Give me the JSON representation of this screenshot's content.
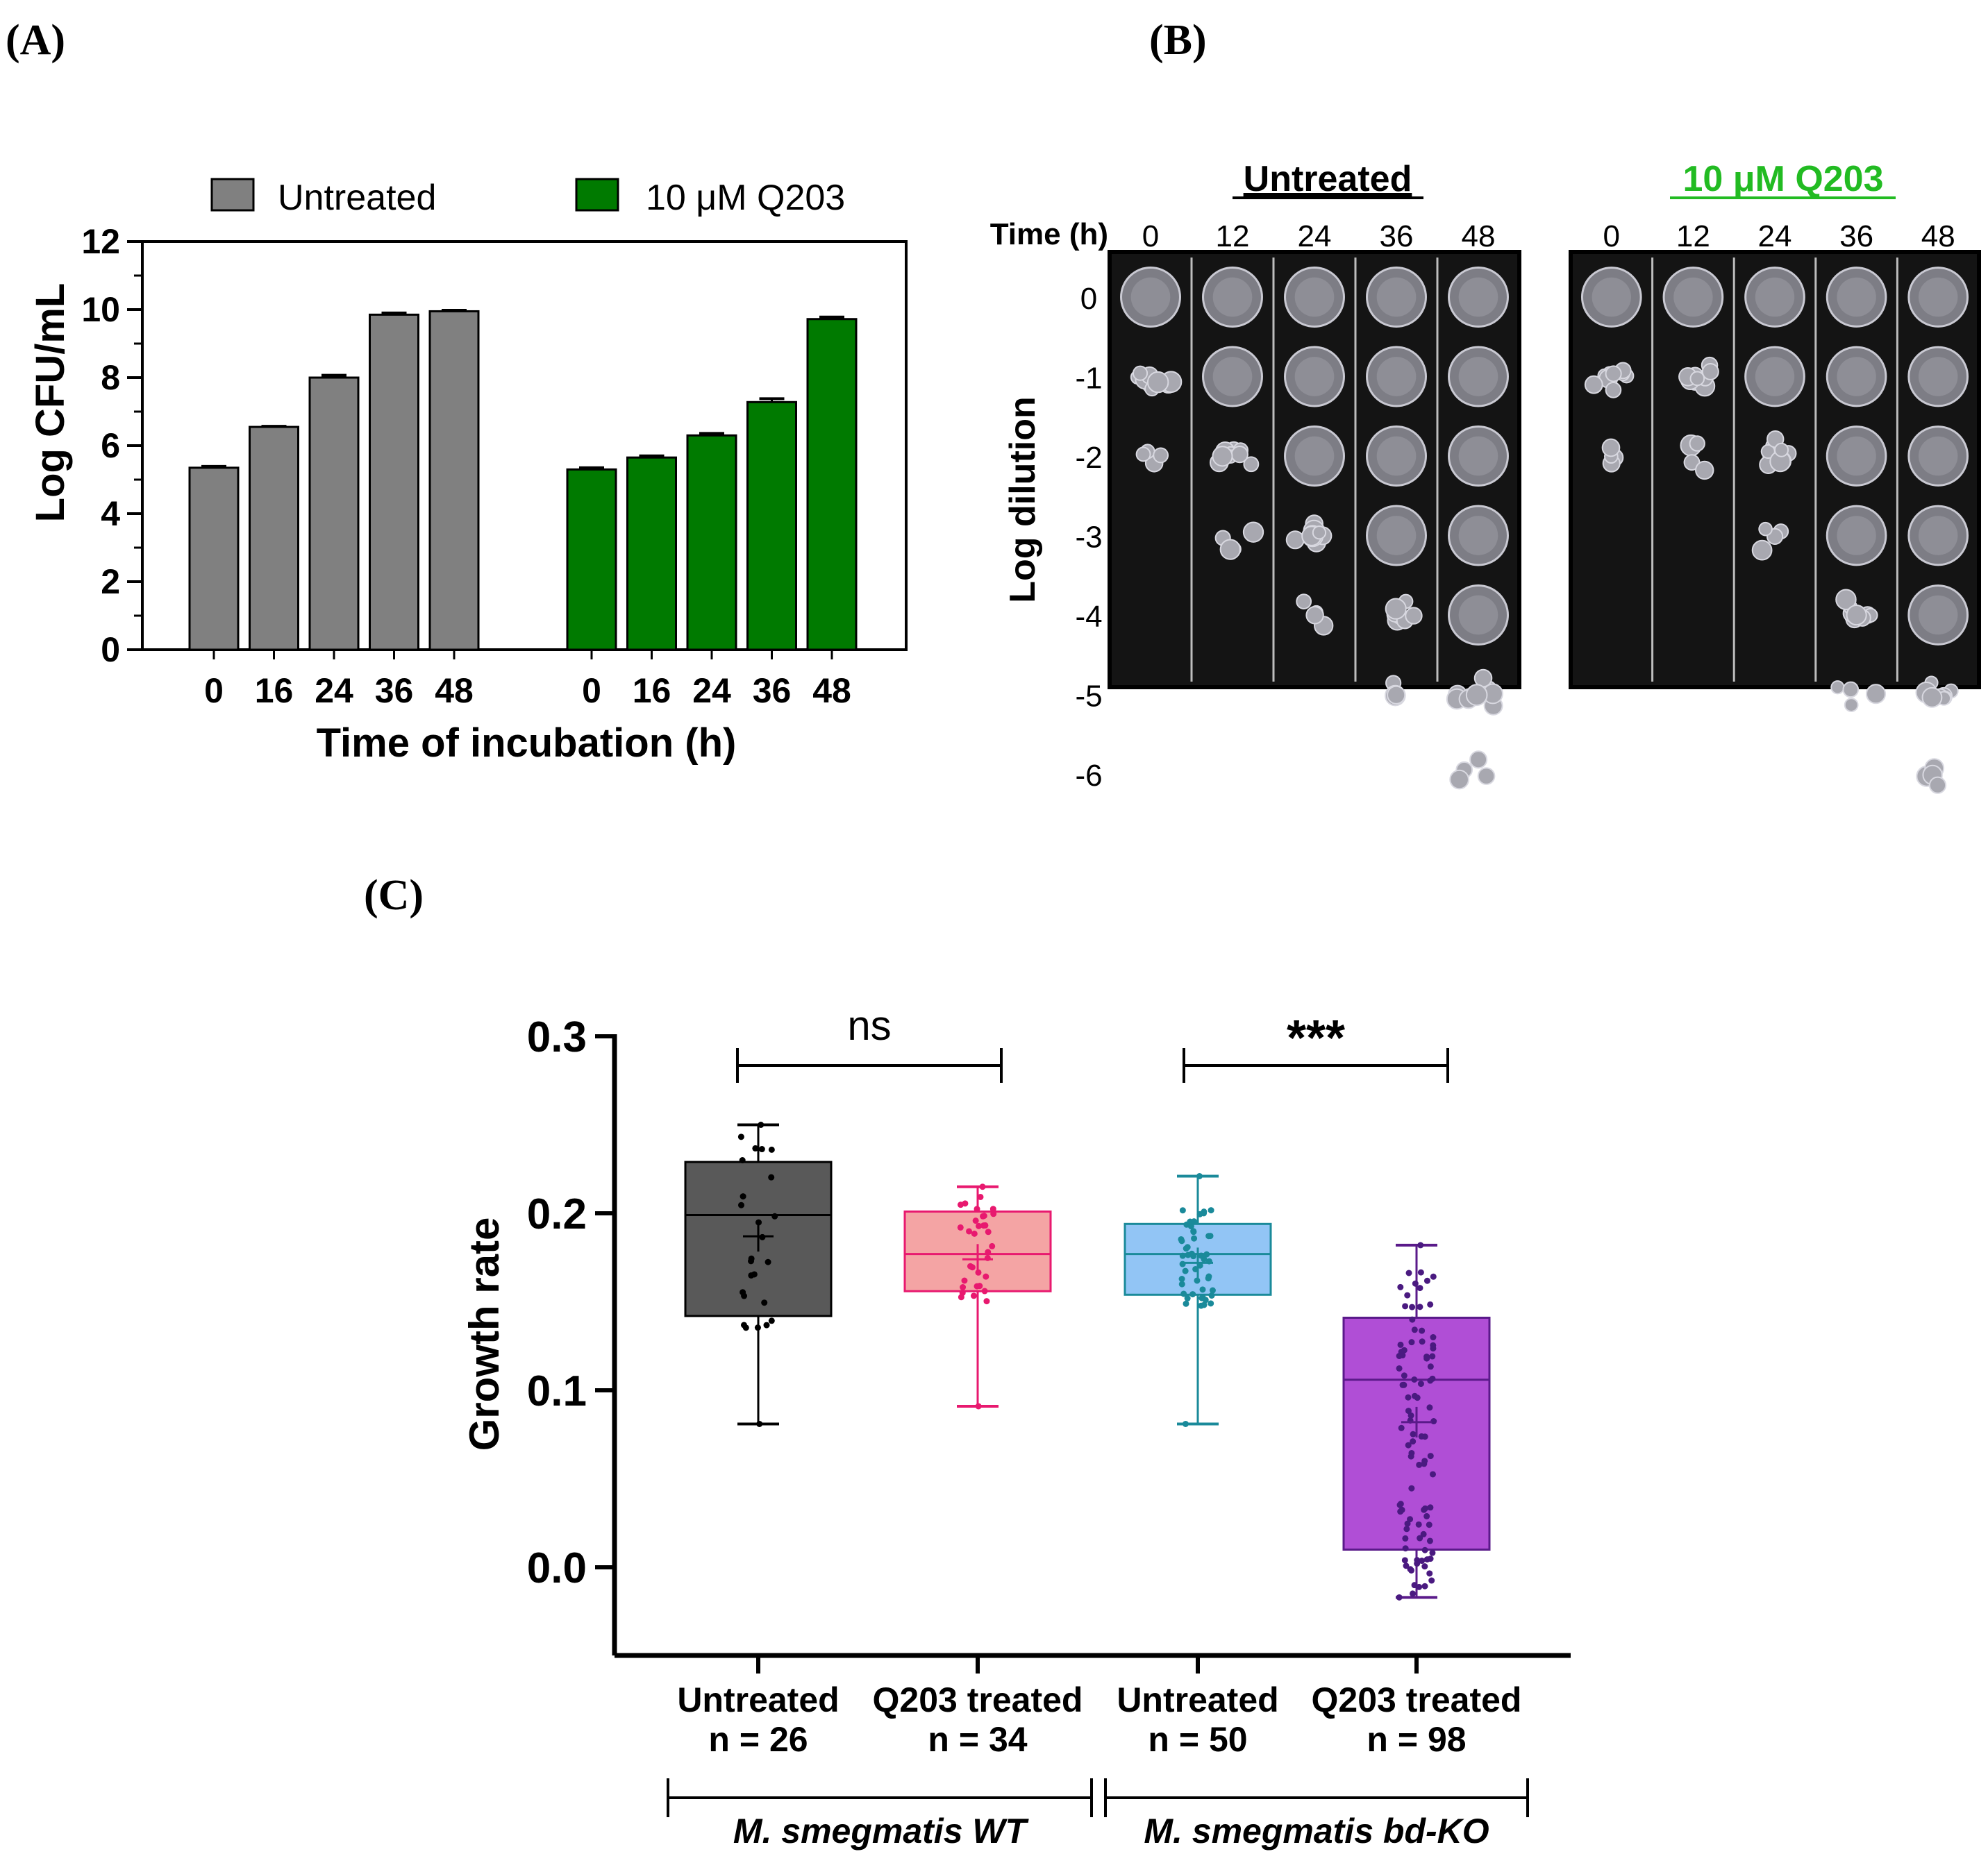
{
  "panels": {
    "a": {
      "label": "(A)"
    },
    "b": {
      "label": "(B)"
    },
    "c": {
      "label": "(C)"
    }
  },
  "chart_data": [
    {
      "type": "bar",
      "panel": "A",
      "title": "",
      "xlabel": "Time of incubation (h)",
      "ylabel": "Log CFU/mL",
      "ylim": [
        0,
        12
      ],
      "yticks": [
        0,
        2,
        4,
        6,
        8,
        10,
        12
      ],
      "categories": [
        "0",
        "16",
        "24",
        "36",
        "48"
      ],
      "series": [
        {
          "name": "Untreated",
          "color": "#808080",
          "values": [
            5.35,
            6.55,
            8.0,
            9.85,
            9.95
          ],
          "errors": [
            0.04,
            0.02,
            0.07,
            0.05,
            0.03
          ]
        },
        {
          "name": "10 μM Q203",
          "color": "#007a00",
          "values": [
            5.3,
            5.65,
            6.3,
            7.28,
            9.72
          ],
          "errors": [
            0.05,
            0.05,
            0.06,
            0.1,
            0.06
          ]
        }
      ],
      "legend": "top"
    },
    {
      "type": "image",
      "panel": "B",
      "description_labels": {
        "time_label": "Time (h)",
        "ylabel": "Log dilution",
        "dilutions": [
          "0",
          "-1",
          "-2",
          "-3",
          "-4",
          "-5",
          "-6"
        ]
      },
      "groups": [
        {
          "title": "Untreated",
          "title_color": "#000000",
          "times": [
            "0",
            "12",
            "24",
            "36",
            "48"
          ],
          "spots": [
            3,
            4,
            5,
            6,
            7
          ]
        },
        {
          "title": "10 μM Q203",
          "title_color": "#22bb22",
          "times": [
            "0",
            "12",
            "24",
            "36",
            "48"
          ],
          "spots": [
            3,
            3,
            4,
            6,
            7
          ]
        }
      ]
    },
    {
      "type": "box",
      "panel": "C",
      "ylabel": "Growth rate",
      "ylim": [
        -0.05,
        0.3
      ],
      "yticks": [
        "0.0",
        "0.1",
        "0.2",
        "0.3"
      ],
      "groups": [
        {
          "name": "Untreated",
          "n_label": "n = 26",
          "n": 26,
          "min": 0.081,
          "q1": 0.142,
          "median": 0.199,
          "mean": 0.187,
          "q3": 0.229,
          "max": 0.25,
          "fill": "#595959",
          "stroke": "#000000",
          "dot": "#000000"
        },
        {
          "name": "Q203 treated",
          "n_label": "n = 34",
          "n": 34,
          "min": 0.091,
          "q1": 0.156,
          "median": 0.177,
          "mean": 0.174,
          "q3": 0.201,
          "max": 0.215,
          "fill": "#f4a4a4",
          "stroke": "#e8196f",
          "dot": "#e8196f"
        },
        {
          "name": "Untreated",
          "n_label": "n = 50",
          "n": 50,
          "min": 0.081,
          "q1": 0.154,
          "median": 0.177,
          "mean": 0.172,
          "q3": 0.194,
          "max": 0.221,
          "fill": "#92c5f5",
          "stroke": "#1a8a9a",
          "dot": "#1a8a9a"
        },
        {
          "name": "Q203 treated",
          "n_label": "n = 98",
          "n": 98,
          "min": -0.017,
          "q1": 0.01,
          "median": 0.106,
          "mean": 0.082,
          "q3": 0.141,
          "max": 0.182,
          "fill": "#b04ed6",
          "stroke": "#5a1a8a",
          "dot": "#4a1a80"
        }
      ],
      "significance": [
        {
          "between": [
            0,
            1
          ],
          "label": "ns"
        },
        {
          "between": [
            2,
            3
          ],
          "label": "***"
        }
      ],
      "strains": [
        {
          "name": "M. smegmatis WT",
          "groups": [
            0,
            1
          ]
        },
        {
          "name": "M. smegmatis bd-KO",
          "groups": [
            2,
            3
          ]
        }
      ]
    }
  ]
}
